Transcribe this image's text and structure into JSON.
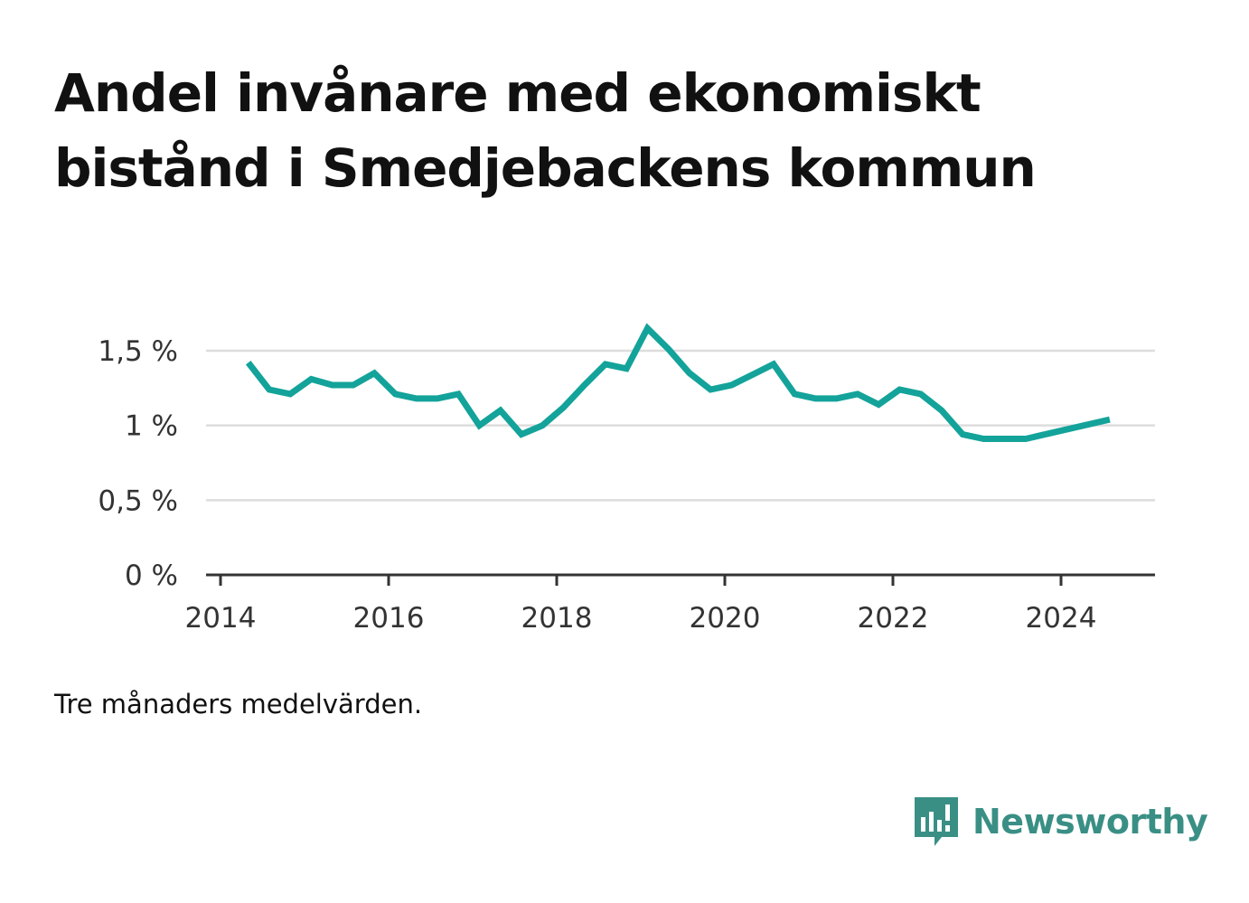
{
  "title_lines": [
    "Andel invånare med ekonomiskt",
    "bistånd i Smedjebackens kommun"
  ],
  "note": "Tre månaders medelvärden.",
  "brand": {
    "name": "Newsworthy",
    "icon": "bar-chart-speech-bubble-icon",
    "color": "#3a8f85"
  },
  "colors": {
    "line": "#13a39a",
    "grid": "#dddddd",
    "axis": "#333333",
    "text": "#333333"
  },
  "chart_data": {
    "type": "line",
    "title": "Andel invånare med ekonomiskt bistånd i Smedjebackens kommun",
    "xlabel": "",
    "ylabel": "",
    "xlim": [
      2013.99,
      2025.1
    ],
    "ylim": [
      0,
      1.5
    ],
    "x_ticks": [
      2014,
      2016,
      2018,
      2020,
      2022,
      2024
    ],
    "x_tick_labels": [
      "2014",
      "2016",
      "2018",
      "2020",
      "2022",
      "2024"
    ],
    "y_ticks": [
      0,
      0.5,
      1,
      1.5
    ],
    "y_tick_labels": [
      "0 %",
      "0,5 %",
      "1 %",
      "1,5 %"
    ],
    "grid": true,
    "series": [
      {
        "x": [
          2014.33,
          2014.58,
          2014.83,
          2015.08,
          2015.33,
          2015.58,
          2015.83,
          2016.08,
          2016.33,
          2016.58,
          2016.83,
          2017.08,
          2017.33,
          2017.58,
          2017.83,
          2018.08,
          2018.33,
          2018.58,
          2018.83,
          2019.08,
          2019.33,
          2019.58,
          2019.83,
          2020.08,
          2020.33,
          2020.58,
          2020.83,
          2021.08,
          2021.33,
          2021.58,
          2021.83,
          2022.08,
          2022.33,
          2022.58,
          2022.83,
          2023.08,
          2023.33,
          2023.58,
          2024.58
        ],
        "y": [
          1.42,
          1.24,
          1.21,
          1.31,
          1.27,
          1.27,
          1.35,
          1.21,
          1.18,
          1.18,
          1.21,
          1.0,
          1.1,
          0.94,
          1.0,
          1.12,
          1.27,
          1.41,
          1.38,
          1.65,
          1.51,
          1.35,
          1.24,
          1.27,
          1.34,
          1.41,
          1.21,
          1.18,
          1.18,
          1.21,
          1.14,
          1.24,
          1.21,
          1.1,
          0.94,
          0.91,
          0.91,
          0.91,
          1.04
        ]
      }
    ]
  }
}
